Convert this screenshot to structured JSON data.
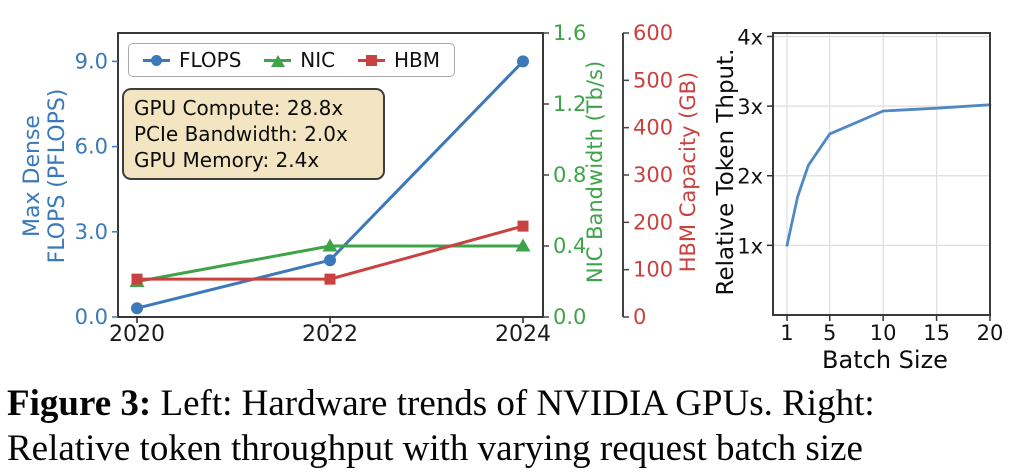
{
  "caption": {
    "label_bold": "Figure 3:",
    "line1_rest": " Left: Hardware trends of NVIDIA GPUs. Right:",
    "line2": "Relative token throughput with varying request batch size"
  },
  "chart_data": [
    {
      "type": "line",
      "title": "",
      "categories": [
        2020,
        2022,
        2024
      ],
      "x_tick_labels": [
        "2020",
        "2022",
        "2024"
      ],
      "series": [
        {
          "name": "FLOPS",
          "axis": "left",
          "marker": "circle",
          "color": "#3b79b8",
          "values": [
            0.31,
            2.0,
            9.0
          ]
        },
        {
          "name": "NIC",
          "axis": "right_nic",
          "marker": "triangle",
          "color": "#3fa34a",
          "values": [
            0.2,
            0.4,
            0.4
          ]
        },
        {
          "name": "HBM",
          "axis": "right_hbm",
          "marker": "square",
          "color": "#c9423f",
          "values": [
            80,
            80,
            192
          ]
        }
      ],
      "axes": {
        "left": {
          "label": "Max Dense FLOPS (PFLOPS)",
          "label_line1": "Max Dense",
          "label_line2": "FLOPS (PFLOPS)",
          "color": "#3b79b8",
          "ticks": [
            0,
            3,
            6,
            9
          ],
          "tick_labels": [
            "0.0",
            "3.0",
            "6.0",
            "9.0"
          ],
          "range": [
            0,
            10.0
          ]
        },
        "right_nic": {
          "label": "NIC Bandwidth (Tb/s)",
          "color": "#3fa34a",
          "ticks": [
            0,
            0.4,
            0.8,
            1.2,
            1.6
          ],
          "tick_labels": [
            "0.0",
            "0.4",
            "0.8",
            "1.2",
            "1.6"
          ],
          "range": [
            0,
            1.6
          ]
        },
        "right_hbm": {
          "label": "HBM Capacity (GB)",
          "color": "#c9423f",
          "ticks": [
            0,
            100,
            200,
            300,
            400,
            500,
            600
          ],
          "tick_labels": [
            "0",
            "100",
            "200",
            "300",
            "400",
            "500",
            "600"
          ],
          "range": [
            0,
            600
          ]
        }
      },
      "legend": {
        "position": "upper-left",
        "items": [
          {
            "label": "FLOPS"
          },
          {
            "label": "NIC"
          },
          {
            "label": "HBM"
          }
        ]
      },
      "annotation": {
        "lines": [
          "GPU Compute: 28.8x",
          "PCIe Bandwidth: 2.0x",
          "GPU Memory: 2.4x"
        ],
        "bg": "#f3e5c1"
      },
      "grid": false
    },
    {
      "type": "line",
      "title": "",
      "xlabel": "Batch Size",
      "ylabel": "Relative Token Thput.",
      "color": "#5088c5",
      "x": [
        1,
        2,
        3,
        5,
        10,
        15,
        20
      ],
      "values": [
        1.0,
        1.7,
        2.15,
        2.6,
        2.93,
        2.97,
        3.02
      ],
      "x_ticks": [
        1,
        5,
        10,
        15,
        20
      ],
      "x_tick_labels": [
        "1",
        "5",
        "10",
        "15",
        "20"
      ],
      "y_ticks": [
        1,
        2,
        3,
        4
      ],
      "y_tick_labels": [
        "1x",
        "2x",
        "3x",
        "4x"
      ],
      "xlim": [
        -0.31,
        20
      ],
      "ylim": [
        0,
        4.05
      ],
      "grid": true
    }
  ]
}
